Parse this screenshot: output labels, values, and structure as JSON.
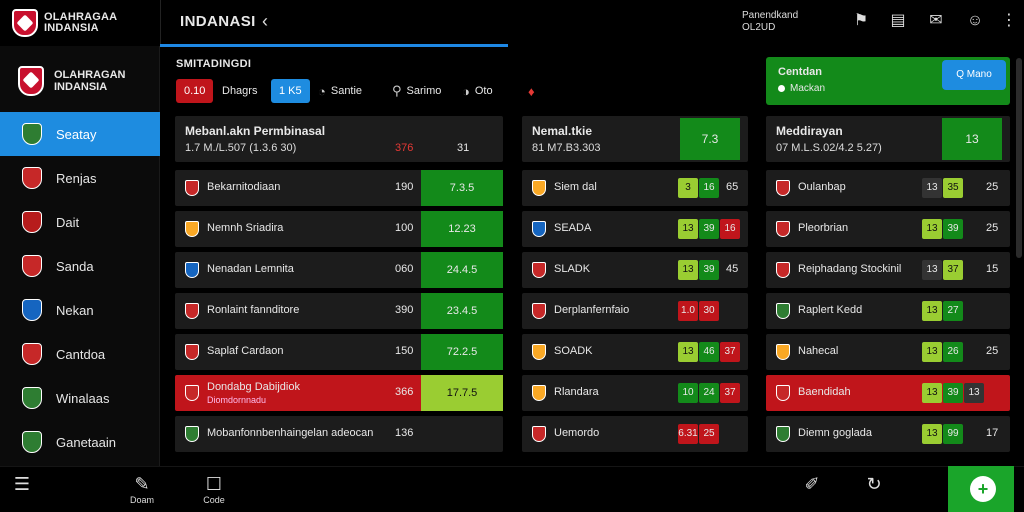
{
  "app": {
    "brand_line1": "OLAHRAGAA",
    "brand_line2": "INDANSIA",
    "page_title": "INDANASI",
    "top_info_line1": "Panendkand",
    "top_info_line2": "OL2UD"
  },
  "sidebar": {
    "brand_line1": "OLAHRAGAN",
    "brand_line2": "INDANSIA",
    "items": [
      {
        "label": "Seatay",
        "color": "#2e7d32"
      },
      {
        "label": "Renjas",
        "color": "#c62828"
      },
      {
        "label": "Dait",
        "color": "#b71c1c"
      },
      {
        "label": "Sanda",
        "color": "#c62828"
      },
      {
        "label": "Nekan",
        "color": "#1565c0"
      },
      {
        "label": "Cantdoa",
        "color": "#c62828"
      },
      {
        "label": "Winalaas",
        "color": "#2e7d32"
      },
      {
        "label": "Ganetaain",
        "color": "#2e7d32"
      }
    ]
  },
  "main": {
    "section_title": "SMITADINGDI",
    "filters": {
      "score_pill": "0.10",
      "tab1": "Dhagrs",
      "active_pill": "1 K5",
      "tab2": "Santie",
      "tab3": "Sarimo",
      "tab4": "Oto"
    },
    "promo": {
      "title": "Centdan",
      "subtitle": "Mackan",
      "button": "Q Mano"
    }
  },
  "columns": [
    {
      "title": "Mebanl.akn Permbinasal",
      "subtitle": "1.7 M./L.507 (1.3.6 30)",
      "header_red": "376",
      "header_num": "31",
      "rows": [
        {
          "name": "Bekarnitodiaan",
          "value": "190",
          "odd": "7.3.5",
          "color": "#c62828"
        },
        {
          "name": "Nemnh Sriadira",
          "value": "100",
          "odd": "12.23",
          "color": "#f9a825"
        },
        {
          "name": "Nenadan Lemnita",
          "value": "060",
          "odd": "24.4.5",
          "color": "#1565c0"
        },
        {
          "name": "Ronlaint fannditore",
          "value": "390",
          "odd": "23.4.5",
          "color": "#c62828"
        },
        {
          "name": "Saplaf Cardaon",
          "value": "150",
          "odd": "72.2.5",
          "color": "#c62828"
        },
        {
          "name": "Dondabg Dabijdiok",
          "sub": "Diomdornnadu",
          "value": "366",
          "odd": "17.7.5",
          "color": "#c62828",
          "highlight": true
        },
        {
          "name": "Mobanfonnbenhaingelan adeocan",
          "value": "136",
          "odd": "",
          "color": "#2e7d32"
        }
      ]
    },
    {
      "title": "Nemal.tkie",
      "subtitle": "81 M7.B3.303",
      "header_box": "7.3",
      "rows": [
        {
          "name": "Siem dal",
          "chips": [
            "3",
            "16"
          ],
          "chip_colors": [
            "y",
            "g"
          ],
          "tail": "65",
          "color": "#f9a825"
        },
        {
          "name": "SEADA",
          "chips": [
            "13",
            "39",
            "16"
          ],
          "chip_colors": [
            "y",
            "g",
            "r"
          ],
          "tail": "",
          "color": "#1565c0"
        },
        {
          "name": "SLADK",
          "chips": [
            "13",
            "39"
          ],
          "chip_colors": [
            "y",
            "g"
          ],
          "tail": "45",
          "color": "#c62828"
        },
        {
          "name": "Derplanfernfaio",
          "chips": [
            "1.0",
            "30"
          ],
          "chip_colors": [
            "r",
            "r"
          ],
          "tail": "",
          "color": "#c62828"
        },
        {
          "name": "SOADK",
          "chips": [
            "13",
            "46",
            "37"
          ],
          "chip_colors": [
            "y",
            "g",
            "r"
          ],
          "tail": "",
          "color": "#f9a825"
        },
        {
          "name": "Rlandara",
          "chips": [
            "10",
            "24",
            "37"
          ],
          "chip_colors": [
            "g",
            "g",
            "r"
          ],
          "tail": "",
          "color": "#f9a825"
        },
        {
          "name": "Uemordo",
          "chips": [
            "6.31",
            "25"
          ],
          "chip_colors": [
            "r",
            "r"
          ],
          "tail": "",
          "color": "#c62828"
        }
      ]
    },
    {
      "title": "Meddirayan",
      "subtitle": "07 M.L.S.02/4.2 5.27)",
      "header_box": "13",
      "rows": [
        {
          "name": "Oulanbap",
          "chips": [
            "13",
            "35"
          ],
          "chip_colors": [
            "gr",
            "y"
          ],
          "tail": "25",
          "color": "#c62828"
        },
        {
          "name": "Pleorbrian",
          "chips": [
            "13",
            "39"
          ],
          "chip_colors": [
            "y",
            "g"
          ],
          "tail": "25",
          "color": "#c62828"
        },
        {
          "name": "Reiphadang Stockinil",
          "chips": [
            "13",
            "37"
          ],
          "chip_colors": [
            "gr",
            "y"
          ],
          "tail": "15",
          "color": "#c62828"
        },
        {
          "name": "Raplert Kedd",
          "chips": [
            "13",
            "27"
          ],
          "chip_colors": [
            "y",
            "g"
          ],
          "tail": "",
          "color": "#2e7d32"
        },
        {
          "name": "Nahecal",
          "chips": [
            "13",
            "26"
          ],
          "chip_colors": [
            "y",
            "g"
          ],
          "tail": "25",
          "color": "#f9a825"
        },
        {
          "name": "Baendidah",
          "chips": [
            "13",
            "39",
            "13"
          ],
          "chip_colors": [
            "y",
            "g",
            "gr"
          ],
          "tail": "",
          "color": "#c62828",
          "highlight": true
        },
        {
          "name": "Diemn goglada",
          "chips": [
            "13",
            "99"
          ],
          "chip_colors": [
            "y",
            "g"
          ],
          "tail": "17",
          "color": "#2e7d32"
        }
      ]
    }
  ],
  "bottombar": {
    "item1_label": "Doam",
    "item2_label": "Code"
  },
  "colors": {
    "accent_blue": "#1e8ce0",
    "win_green": "#138a1a",
    "alert_red": "#c0151b"
  }
}
